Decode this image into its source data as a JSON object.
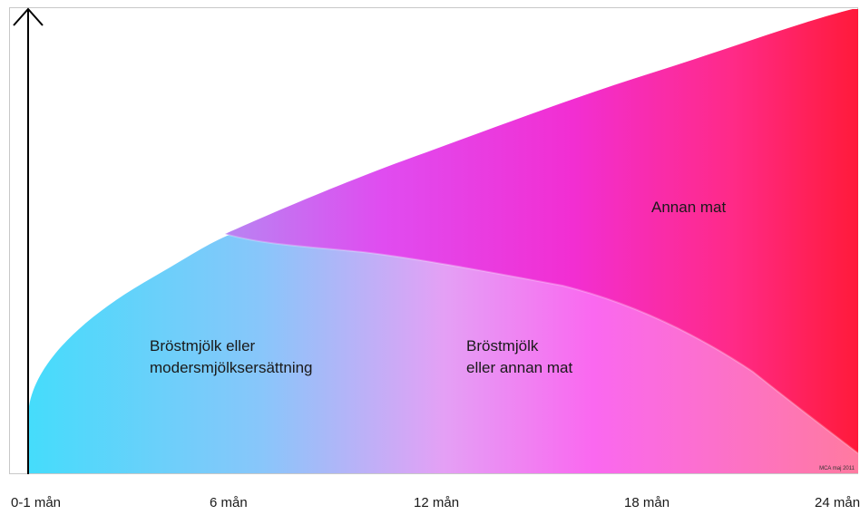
{
  "areas": {
    "other_food": "Annan mat",
    "breastmilk_or_formula": [
      "Bröstmjölk eller",
      "modersmjölksersättning"
    ],
    "breastmilk_or_other": [
      "Bröstmjölk",
      "eller annan mat"
    ]
  },
  "credit": "MCA maj 2011",
  "x_axis": [
    "0-1 mån",
    "6 mån",
    "12 mån",
    "18 mån",
    "24 mån"
  ],
  "colors": {
    "cyan": "#45dcfb",
    "magenta": "#f24df0",
    "red": "#ff1a3a"
  }
}
